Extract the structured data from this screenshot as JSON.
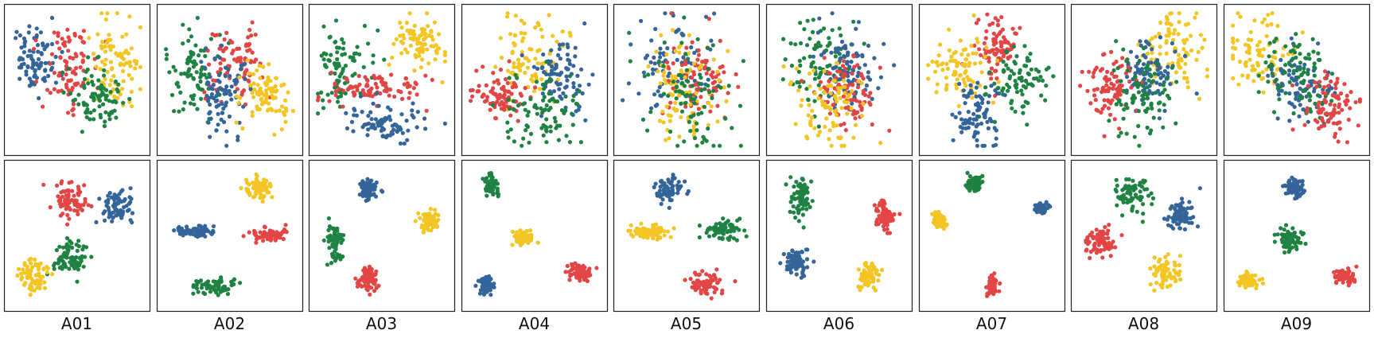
{
  "chart_data": {
    "type": "scatter",
    "layout": "2 rows x 9 columns of scatter panels",
    "columns": [
      "A01",
      "A02",
      "A03",
      "A04",
      "A05",
      "A06",
      "A07",
      "A08",
      "A09"
    ],
    "axes": "hidden (no ticks, no axis labels)",
    "grid": false,
    "legend": "none",
    "point_colors": {
      "blue": "#33649a",
      "red": "#e34545",
      "green": "#1e8242",
      "yellow": "#f3c523"
    },
    "panel_extent": {
      "x": [
        0,
        1
      ],
      "y": [
        0,
        1
      ]
    },
    "rows": [
      {
        "row": "top",
        "description": "overlapping clusters",
        "panels": [
          {
            "label": "A01",
            "clusters": [
              {
                "color": "blue",
                "cx": 0.17,
                "cy": 0.64,
                "sx": 0.09,
                "sy": 0.13
              },
              {
                "color": "red",
                "cx": 0.43,
                "cy": 0.6,
                "sx": 0.1,
                "sy": 0.14
              },
              {
                "color": "yellow",
                "cx": 0.8,
                "cy": 0.63,
                "sx": 0.1,
                "sy": 0.17
              },
              {
                "color": "green",
                "cx": 0.65,
                "cy": 0.35,
                "sx": 0.1,
                "sy": 0.12
              }
            ]
          },
          {
            "label": "A02",
            "clusters": [
              {
                "color": "green",
                "cx": 0.22,
                "cy": 0.55,
                "sx": 0.12,
                "sy": 0.17
              },
              {
                "color": "red",
                "cx": 0.55,
                "cy": 0.63,
                "sx": 0.11,
                "sy": 0.13
              },
              {
                "color": "blue",
                "cx": 0.43,
                "cy": 0.4,
                "sx": 0.1,
                "sy": 0.18
              },
              {
                "color": "yellow",
                "cx": 0.78,
                "cy": 0.38,
                "sx": 0.1,
                "sy": 0.1
              }
            ]
          },
          {
            "label": "A03",
            "clusters": [
              {
                "color": "green",
                "cx": 0.2,
                "cy": 0.58,
                "sx": 0.11,
                "sy": 0.14
              },
              {
                "color": "red",
                "cx": 0.43,
                "cy": 0.43,
                "sx": 0.18,
                "sy": 0.07
              },
              {
                "color": "blue",
                "cx": 0.5,
                "cy": 0.18,
                "sx": 0.16,
                "sy": 0.07
              },
              {
                "color": "yellow",
                "cx": 0.8,
                "cy": 0.77,
                "sx": 0.1,
                "sy": 0.1
              }
            ]
          },
          {
            "label": "A04",
            "clusters": [
              {
                "color": "yellow",
                "cx": 0.48,
                "cy": 0.66,
                "sx": 0.14,
                "sy": 0.15
              },
              {
                "color": "blue",
                "cx": 0.72,
                "cy": 0.52,
                "sx": 0.1,
                "sy": 0.15
              },
              {
                "color": "red",
                "cx": 0.25,
                "cy": 0.38,
                "sx": 0.12,
                "sy": 0.09
              },
              {
                "color": "green",
                "cx": 0.55,
                "cy": 0.26,
                "sx": 0.15,
                "sy": 0.15
              }
            ]
          },
          {
            "label": "A05",
            "clusters": [
              {
                "color": "blue",
                "cx": 0.4,
                "cy": 0.58,
                "sx": 0.16,
                "sy": 0.18
              },
              {
                "color": "red",
                "cx": 0.62,
                "cy": 0.48,
                "sx": 0.15,
                "sy": 0.17
              },
              {
                "color": "yellow",
                "cx": 0.48,
                "cy": 0.43,
                "sx": 0.14,
                "sy": 0.17
              },
              {
                "color": "green",
                "cx": 0.52,
                "cy": 0.35,
                "sx": 0.17,
                "sy": 0.22
              }
            ]
          },
          {
            "label": "A06",
            "clusters": [
              {
                "color": "green",
                "cx": 0.35,
                "cy": 0.64,
                "sx": 0.15,
                "sy": 0.17
              },
              {
                "color": "blue",
                "cx": 0.58,
                "cy": 0.58,
                "sx": 0.11,
                "sy": 0.15
              },
              {
                "color": "red",
                "cx": 0.55,
                "cy": 0.4,
                "sx": 0.13,
                "sy": 0.14
              },
              {
                "color": "yellow",
                "cx": 0.45,
                "cy": 0.3,
                "sx": 0.14,
                "sy": 0.17
              }
            ]
          },
          {
            "label": "A07",
            "clusters": [
              {
                "color": "red",
                "cx": 0.55,
                "cy": 0.72,
                "sx": 0.08,
                "sy": 0.11
              },
              {
                "color": "yellow",
                "cx": 0.28,
                "cy": 0.57,
                "sx": 0.12,
                "sy": 0.12
              },
              {
                "color": "green",
                "cx": 0.73,
                "cy": 0.46,
                "sx": 0.12,
                "sy": 0.12
              },
              {
                "color": "blue",
                "cx": 0.38,
                "cy": 0.25,
                "sx": 0.08,
                "sy": 0.12
              }
            ]
          },
          {
            "label": "A08",
            "clusters": [
              {
                "color": "yellow",
                "cx": 0.72,
                "cy": 0.72,
                "sx": 0.14,
                "sy": 0.16
              },
              {
                "color": "blue",
                "cx": 0.57,
                "cy": 0.55,
                "sx": 0.1,
                "sy": 0.12
              },
              {
                "color": "red",
                "cx": 0.26,
                "cy": 0.45,
                "sx": 0.1,
                "sy": 0.12
              },
              {
                "color": "green",
                "cx": 0.47,
                "cy": 0.4,
                "sx": 0.12,
                "sy": 0.15
              }
            ]
          },
          {
            "label": "A09",
            "clusters": [
              {
                "color": "yellow",
                "cx": 0.25,
                "cy": 0.7,
                "sx": 0.13,
                "sy": 0.13
              },
              {
                "color": "blue",
                "cx": 0.55,
                "cy": 0.46,
                "sx": 0.13,
                "sy": 0.13
              },
              {
                "color": "green",
                "cx": 0.48,
                "cy": 0.52,
                "sx": 0.16,
                "sy": 0.14
              },
              {
                "color": "red",
                "cx": 0.77,
                "cy": 0.28,
                "sx": 0.11,
                "sy": 0.11
              }
            ]
          }
        ]
      },
      {
        "row": "bottom",
        "description": "well separated clusters",
        "panels": [
          {
            "label": "A01",
            "clusters": [
              {
                "color": "red",
                "cx": 0.44,
                "cy": 0.77,
                "sx": 0.07,
                "sy": 0.07
              },
              {
                "color": "blue",
                "cx": 0.83,
                "cy": 0.7,
                "sx": 0.06,
                "sy": 0.06
              },
              {
                "color": "green",
                "cx": 0.45,
                "cy": 0.33,
                "sx": 0.07,
                "sy": 0.08
              },
              {
                "color": "yellow",
                "cx": 0.17,
                "cy": 0.2,
                "sx": 0.06,
                "sy": 0.07
              }
            ]
          },
          {
            "label": "A02",
            "clusters": [
              {
                "color": "yellow",
                "cx": 0.72,
                "cy": 0.85,
                "sx": 0.05,
                "sy": 0.04
              },
              {
                "color": "blue",
                "cx": 0.23,
                "cy": 0.53,
                "sx": 0.09,
                "sy": 0.02
              },
              {
                "color": "red",
                "cx": 0.8,
                "cy": 0.5,
                "sx": 0.08,
                "sy": 0.025
              },
              {
                "color": "green",
                "cx": 0.4,
                "cy": 0.13,
                "sx": 0.09,
                "sy": 0.03
              }
            ]
          },
          {
            "label": "A03",
            "clusters": [
              {
                "color": "blue",
                "cx": 0.4,
                "cy": 0.85,
                "sx": 0.04,
                "sy": 0.04
              },
              {
                "color": "yellow",
                "cx": 0.87,
                "cy": 0.6,
                "sx": 0.04,
                "sy": 0.04
              },
              {
                "color": "green",
                "cx": 0.14,
                "cy": 0.45,
                "sx": 0.03,
                "sy": 0.06
              },
              {
                "color": "red",
                "cx": 0.4,
                "cy": 0.17,
                "sx": 0.04,
                "sy": 0.04
              }
            ]
          },
          {
            "label": "A04",
            "clusters": [
              {
                "color": "green",
                "cx": 0.16,
                "cy": 0.87,
                "sx": 0.03,
                "sy": 0.04
              },
              {
                "color": "yellow",
                "cx": 0.42,
                "cy": 0.48,
                "sx": 0.04,
                "sy": 0.025
              },
              {
                "color": "red",
                "cx": 0.86,
                "cy": 0.23,
                "sx": 0.04,
                "sy": 0.03
              },
              {
                "color": "blue",
                "cx": 0.13,
                "cy": 0.13,
                "sx": 0.03,
                "sy": 0.035
              }
            ]
          },
          {
            "label": "A05",
            "clusters": [
              {
                "color": "blue",
                "cx": 0.37,
                "cy": 0.85,
                "sx": 0.05,
                "sy": 0.05
              },
              {
                "color": "yellow",
                "cx": 0.22,
                "cy": 0.52,
                "sx": 0.08,
                "sy": 0.03
              },
              {
                "color": "green",
                "cx": 0.78,
                "cy": 0.54,
                "sx": 0.08,
                "sy": 0.04
              },
              {
                "color": "red",
                "cx": 0.65,
                "cy": 0.15,
                "sx": 0.06,
                "sy": 0.045
              }
            ]
          },
          {
            "label": "A06",
            "clusters": [
              {
                "color": "green",
                "cx": 0.2,
                "cy": 0.78,
                "sx": 0.04,
                "sy": 0.07
              },
              {
                "color": "red",
                "cx": 0.85,
                "cy": 0.65,
                "sx": 0.04,
                "sy": 0.05
              },
              {
                "color": "blue",
                "cx": 0.17,
                "cy": 0.3,
                "sx": 0.04,
                "sy": 0.05
              },
              {
                "color": "yellow",
                "cx": 0.73,
                "cy": 0.2,
                "sx": 0.04,
                "sy": 0.05
              }
            ]
          },
          {
            "label": "A07",
            "clusters": [
              {
                "color": "green",
                "cx": 0.37,
                "cy": 0.88,
                "sx": 0.025,
                "sy": 0.03
              },
              {
                "color": "blue",
                "cx": 0.88,
                "cy": 0.7,
                "sx": 0.025,
                "sy": 0.02
              },
              {
                "color": "yellow",
                "cx": 0.1,
                "cy": 0.62,
                "sx": 0.02,
                "sy": 0.03
              },
              {
                "color": "red",
                "cx": 0.5,
                "cy": 0.13,
                "sx": 0.02,
                "sy": 0.035
              }
            ]
          },
          {
            "label": "A08",
            "clusters": [
              {
                "color": "green",
                "cx": 0.43,
                "cy": 0.8,
                "sx": 0.06,
                "sy": 0.06
              },
              {
                "color": "blue",
                "cx": 0.78,
                "cy": 0.65,
                "sx": 0.06,
                "sy": 0.06
              },
              {
                "color": "red",
                "cx": 0.17,
                "cy": 0.45,
                "sx": 0.06,
                "sy": 0.06
              },
              {
                "color": "yellow",
                "cx": 0.67,
                "cy": 0.22,
                "sx": 0.06,
                "sy": 0.06
              }
            ]
          },
          {
            "label": "A09",
            "clusters": [
              {
                "color": "blue",
                "cx": 0.48,
                "cy": 0.85,
                "sx": 0.04,
                "sy": 0.035
              },
              {
                "color": "green",
                "cx": 0.45,
                "cy": 0.46,
                "sx": 0.04,
                "sy": 0.04
              },
              {
                "color": "red",
                "cx": 0.87,
                "cy": 0.2,
                "sx": 0.04,
                "sy": 0.025
              },
              {
                "color": "yellow",
                "cx": 0.13,
                "cy": 0.16,
                "sx": 0.04,
                "sy": 0.03
              }
            ]
          }
        ]
      }
    ]
  }
}
